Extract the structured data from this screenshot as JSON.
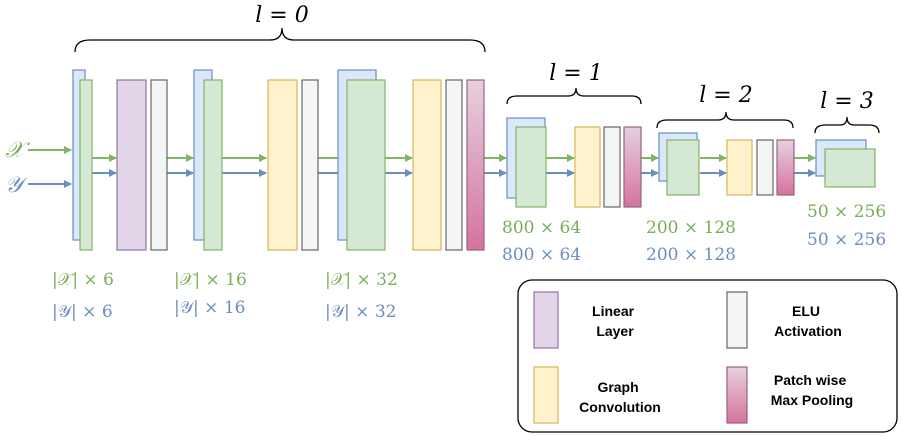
{
  "colors": {
    "green_stroke": "#82b366",
    "green_fill": "#d5e8d4",
    "blue_stroke": "#6c8ebf",
    "blue_fill": "#dae8fc",
    "purple_stroke": "#9673a6",
    "purple_fill": "#e1d5e7",
    "yellow_stroke": "#d6b656",
    "yellow_fill": "#fff2cc",
    "white_stroke": "#666666",
    "white_fill": "#f5f5f5",
    "pink_stroke": "#996185",
    "pink_fill_top": "#e6d0de",
    "pink_fill_bottom": "#d5739d",
    "green_text": "#7aae5a",
    "blue_text": "#6c8ebf",
    "black": "#000000"
  },
  "levels": [
    {
      "label": "l = 0"
    },
    {
      "label": "l = 1"
    },
    {
      "label": "l = 2"
    },
    {
      "label": "l = 3"
    }
  ],
  "inputs": {
    "x_symbol": "𝒳",
    "y_symbol": "𝒴"
  },
  "dimensions": [
    {
      "x_text": "|𝒳| × 6",
      "y_text": "|𝒴| × 6"
    },
    {
      "x_text": "|𝒳| × 16",
      "y_text": "|𝒴| × 16"
    },
    {
      "x_text": "|𝒳| × 32",
      "y_text": "|𝒴| × 32"
    },
    {
      "x_text": "800 × 64",
      "y_text": "800 × 64"
    },
    {
      "x_text": "200 × 128",
      "y_text": "200 × 128"
    },
    {
      "x_text": "50 × 256",
      "y_text": "50 × 256"
    }
  ],
  "legend": {
    "linear": [
      "Linear",
      "Layer"
    ],
    "elu": [
      "ELU",
      "Activation"
    ],
    "graph_conv": [
      "Graph",
      "Convolution"
    ],
    "pooling": [
      "Patch wise",
      "Max Pooling"
    ]
  }
}
